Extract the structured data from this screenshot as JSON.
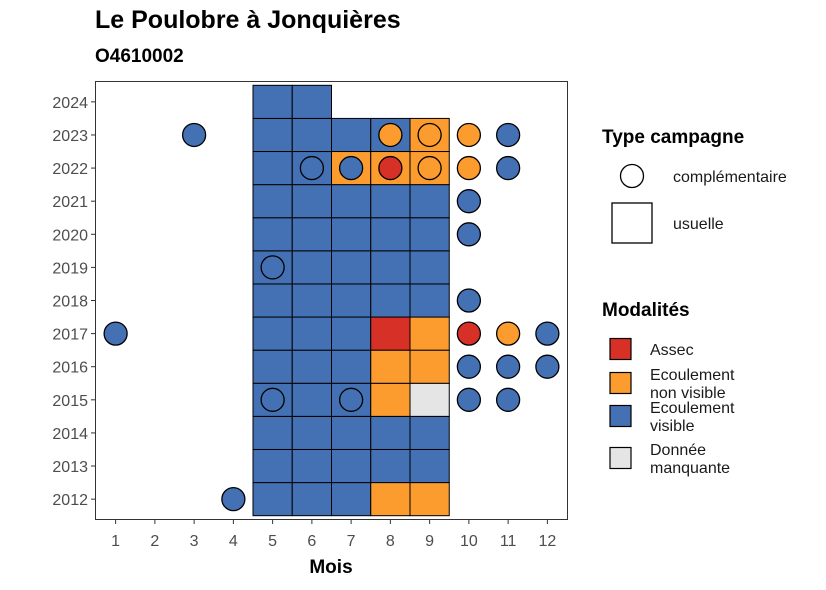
{
  "title": "Le Poulobre à Jonquières",
  "subtitle": "O4610002",
  "chart_data": {
    "type": "heatmap",
    "xlabel": "Mois",
    "x_ticks": [
      1,
      2,
      3,
      4,
      5,
      6,
      7,
      8,
      9,
      10,
      11,
      12
    ],
    "y_ticks": [
      2012,
      2013,
      2014,
      2015,
      2016,
      2017,
      2018,
      2019,
      2020,
      2021,
      2022,
      2023,
      2024
    ],
    "xlim": [
      0.5,
      12.5
    ],
    "ylim": [
      2011.4,
      2024.6
    ],
    "colors": {
      "Assec": "#d73027",
      "Ecoulement non visible": "#fd9c2e",
      "Ecoulement visible": "#4471b4",
      "Donnée manquante": "#e5e5e5"
    },
    "legend_type": {
      "title": "Type campagne",
      "items": [
        {
          "label": "complémentaire",
          "shape": "circle"
        },
        {
          "label": "usuelle",
          "shape": "square"
        }
      ]
    },
    "legend_modalites": {
      "title": "Modalités",
      "items": [
        {
          "key": "Assec",
          "line1": "Assec",
          "line2": ""
        },
        {
          "key": "Ecoulement non visible",
          "line1": "Ecoulement",
          "line2": "non visible"
        },
        {
          "key": "Ecoulement visible",
          "line1": "Ecoulement",
          "line2": "visible"
        },
        {
          "key": "Donnée manquante",
          "line1": "Donnée",
          "line2": "manquante"
        }
      ]
    },
    "usuelle": [
      {
        "year": 2012,
        "months": {
          "5": "Ecoulement visible",
          "6": "Ecoulement visible",
          "7": "Ecoulement visible",
          "8": "Ecoulement non visible",
          "9": "Ecoulement non visible"
        }
      },
      {
        "year": 2013,
        "months": {
          "5": "Ecoulement visible",
          "6": "Ecoulement visible",
          "7": "Ecoulement visible",
          "8": "Ecoulement visible",
          "9": "Ecoulement visible"
        }
      },
      {
        "year": 2014,
        "months": {
          "5": "Ecoulement visible",
          "6": "Ecoulement visible",
          "7": "Ecoulement visible",
          "8": "Ecoulement visible",
          "9": "Ecoulement visible"
        }
      },
      {
        "year": 2015,
        "months": {
          "5": "Ecoulement visible",
          "6": "Ecoulement visible",
          "7": "Ecoulement visible",
          "8": "Ecoulement non visible",
          "9": "Donnée manquante"
        }
      },
      {
        "year": 2016,
        "months": {
          "5": "Ecoulement visible",
          "6": "Ecoulement visible",
          "7": "Ecoulement visible",
          "8": "Ecoulement non visible",
          "9": "Ecoulement non visible"
        }
      },
      {
        "year": 2017,
        "months": {
          "5": "Ecoulement visible",
          "6": "Ecoulement visible",
          "7": "Ecoulement visible",
          "8": "Assec",
          "9": "Ecoulement non visible"
        }
      },
      {
        "year": 2018,
        "months": {
          "5": "Ecoulement visible",
          "6": "Ecoulement visible",
          "7": "Ecoulement visible",
          "8": "Ecoulement visible",
          "9": "Ecoulement visible"
        }
      },
      {
        "year": 2019,
        "months": {
          "5": "Ecoulement visible",
          "6": "Ecoulement visible",
          "7": "Ecoulement visible",
          "8": "Ecoulement visible",
          "9": "Ecoulement visible"
        }
      },
      {
        "year": 2020,
        "months": {
          "5": "Ecoulement visible",
          "6": "Ecoulement visible",
          "7": "Ecoulement visible",
          "8": "Ecoulement visible",
          "9": "Ecoulement visible"
        }
      },
      {
        "year": 2021,
        "months": {
          "5": "Ecoulement visible",
          "6": "Ecoulement visible",
          "7": "Ecoulement visible",
          "8": "Ecoulement visible",
          "9": "Ecoulement visible"
        }
      },
      {
        "year": 2022,
        "months": {
          "5": "Ecoulement visible",
          "6": "Ecoulement visible",
          "7": "Ecoulement non visible",
          "8": "Ecoulement non visible",
          "9": "Ecoulement non visible"
        }
      },
      {
        "year": 2023,
        "months": {
          "5": "Ecoulement visible",
          "6": "Ecoulement visible",
          "7": "Ecoulement visible",
          "8": "Ecoulement visible",
          "9": "Ecoulement non visible"
        }
      },
      {
        "year": 2024,
        "months": {
          "5": "Ecoulement visible",
          "6": "Ecoulement visible"
        }
      }
    ],
    "complementaire": [
      {
        "year": 2012,
        "month": 4,
        "status": "Ecoulement visible"
      },
      {
        "year": 2015,
        "month": 5,
        "status": "Ecoulement visible"
      },
      {
        "year": 2015,
        "month": 7,
        "status": "Ecoulement visible"
      },
      {
        "year": 2015,
        "month": 10,
        "status": "Ecoulement visible"
      },
      {
        "year": 2015,
        "month": 11,
        "status": "Ecoulement visible"
      },
      {
        "year": 2016,
        "month": 10,
        "status": "Ecoulement visible"
      },
      {
        "year": 2016,
        "month": 11,
        "status": "Ecoulement visible"
      },
      {
        "year": 2016,
        "month": 12,
        "status": "Ecoulement visible"
      },
      {
        "year": 2017,
        "month": 1,
        "status": "Ecoulement visible"
      },
      {
        "year": 2017,
        "month": 10,
        "status": "Assec"
      },
      {
        "year": 2017,
        "month": 11,
        "status": "Ecoulement non visible"
      },
      {
        "year": 2017,
        "month": 12,
        "status": "Ecoulement visible"
      },
      {
        "year": 2018,
        "month": 10,
        "status": "Ecoulement visible"
      },
      {
        "year": 2019,
        "month": 5,
        "status": "Ecoulement visible"
      },
      {
        "year": 2020,
        "month": 10,
        "status": "Ecoulement visible"
      },
      {
        "year": 2021,
        "month": 10,
        "status": "Ecoulement visible"
      },
      {
        "year": 2022,
        "month": 6,
        "status": "Ecoulement visible"
      },
      {
        "year": 2022,
        "month": 7,
        "status": "Ecoulement visible"
      },
      {
        "year": 2022,
        "month": 8,
        "status": "Assec"
      },
      {
        "year": 2022,
        "month": 9,
        "status": "Ecoulement non visible"
      },
      {
        "year": 2022,
        "month": 10,
        "status": "Ecoulement non visible"
      },
      {
        "year": 2022,
        "month": 11,
        "status": "Ecoulement visible"
      },
      {
        "year": 2023,
        "month": 3,
        "status": "Ecoulement visible"
      },
      {
        "year": 2023,
        "month": 8,
        "status": "Ecoulement non visible"
      },
      {
        "year": 2023,
        "month": 9,
        "status": "Ecoulement non visible"
      },
      {
        "year": 2023,
        "month": 10,
        "status": "Ecoulement non visible"
      },
      {
        "year": 2023,
        "month": 11,
        "status": "Ecoulement visible"
      }
    ]
  }
}
